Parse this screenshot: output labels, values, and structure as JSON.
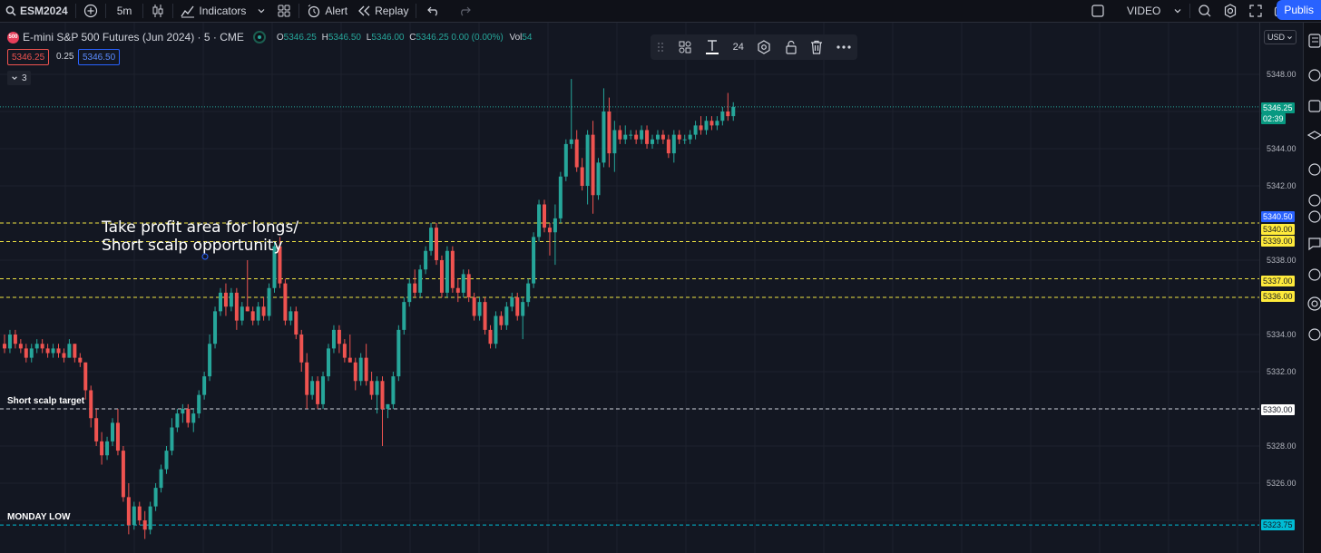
{
  "toolbar": {
    "symbol": "ESM2024",
    "interval": "5m",
    "indicators": "Indicators",
    "alert": "Alert",
    "replay": "Replay",
    "video": "VIDEO",
    "publish": "Publis"
  },
  "legend": {
    "title": "E-mini S&P 500 Futures (Jun 2024) · 5 · CME",
    "symbol_badge": "500",
    "o_label": "O",
    "o": "5346.25",
    "h_label": "H",
    "h": "5346.50",
    "l_label": "L",
    "l": "5346.00",
    "c_label": "C",
    "c": "5346.25 0.00 (0.00%)",
    "vol_label": "Vol",
    "vol": "54",
    "bid": "5346.25",
    "spread": "0.25",
    "ask": "5346.50",
    "collapse_count": "3"
  },
  "drawing_toolbar": {
    "font_size": "24"
  },
  "annotations": {
    "take_profit_line1": "Take profit area for longs/",
    "take_profit_line2": "Short scalp opportunity",
    "short_scalp_target": "Short scalp target",
    "monday_low": "MONDAY LOW"
  },
  "price_axis": {
    "currency": "USD",
    "labels": [
      "5348.00",
      "5344.00",
      "5342.00",
      "5338.00",
      "5334.00",
      "5332.00",
      "5328.00",
      "5326.00"
    ],
    "tags": [
      {
        "text": "5346.25",
        "bg": "#089981",
        "fg": "#ffffff"
      },
      {
        "text": "02:39",
        "bg": "#089981",
        "fg": "#ffffff"
      },
      {
        "text": "5340.50",
        "bg": "#2962ff",
        "fg": "#ffffff"
      },
      {
        "text": "5340.00",
        "bg": "#ffeb3b",
        "fg": "#131722"
      },
      {
        "text": "5339.00",
        "bg": "#ffeb3b",
        "fg": "#131722"
      },
      {
        "text": "5337.00",
        "bg": "#ffeb3b",
        "fg": "#131722"
      },
      {
        "text": "5336.00",
        "bg": "#ffeb3b",
        "fg": "#131722"
      },
      {
        "text": "5330.00",
        "bg": "#ffffff",
        "fg": "#131722"
      },
      {
        "text": "5323.75",
        "bg": "#00bcd4",
        "fg": "#131722"
      }
    ]
  },
  "colors": {
    "up": "#26a69a",
    "down": "#ef5350",
    "level_yellow": "#f0e442",
    "level_white": "#d1d4dc",
    "level_cyan": "#00bcd4"
  },
  "chart_data": {
    "type": "candlestick",
    "symbol": "ESM2024",
    "price_levels": [
      5340.0,
      5339.0,
      5337.0,
      5336.0,
      5330.0,
      5323.75
    ],
    "candles_ohlc": [
      [
        5333.5,
        5334.0,
        5333.0,
        5333.25
      ],
      [
        5333.25,
        5334.25,
        5333.0,
        5334.0
      ],
      [
        5334.0,
        5334.25,
        5333.25,
        5333.5
      ],
      [
        5333.5,
        5333.75,
        5333.0,
        5333.25
      ],
      [
        5333.25,
        5333.5,
        5332.5,
        5332.75
      ],
      [
        5332.75,
        5333.5,
        5332.5,
        5333.25
      ],
      [
        5333.25,
        5333.75,
        5333.0,
        5333.5
      ],
      [
        5333.5,
        5333.75,
        5333.0,
        5333.25
      ],
      [
        5333.25,
        5333.5,
        5332.75,
        5333.0
      ],
      [
        5333.0,
        5333.5,
        5332.75,
        5333.25
      ],
      [
        5333.25,
        5333.5,
        5332.75,
        5333.0
      ],
      [
        5333.0,
        5333.25,
        5332.5,
        5332.75
      ],
      [
        5332.75,
        5333.75,
        5332.75,
        5333.5
      ],
      [
        5333.5,
        5333.5,
        5332.5,
        5332.75
      ],
      [
        5332.75,
        5333.0,
        5332.25,
        5332.5
      ],
      [
        5332.5,
        5332.5,
        5330.5,
        5331.0
      ],
      [
        5331.0,
        5331.25,
        5329.0,
        5329.5
      ],
      [
        5329.5,
        5330.0,
        5328.0,
        5328.25
      ],
      [
        5328.25,
        5328.75,
        5327.0,
        5327.5
      ],
      [
        5327.5,
        5328.5,
        5327.25,
        5328.25
      ],
      [
        5328.25,
        5329.5,
        5328.0,
        5329.25
      ],
      [
        5329.25,
        5330.0,
        5327.5,
        5327.75
      ],
      [
        5327.75,
        5328.0,
        5325.0,
        5325.25
      ],
      [
        5325.25,
        5326.0,
        5323.25,
        5323.75
      ],
      [
        5323.75,
        5325.0,
        5323.5,
        5324.75
      ],
      [
        5324.75,
        5325.0,
        5323.75,
        5324.0
      ],
      [
        5324.0,
        5324.5,
        5323.0,
        5323.5
      ],
      [
        5323.5,
        5325.0,
        5323.25,
        5324.75
      ],
      [
        5324.75,
        5326.0,
        5324.5,
        5325.75
      ],
      [
        5325.75,
        5327.0,
        5325.5,
        5326.75
      ],
      [
        5326.75,
        5328.0,
        5326.5,
        5327.75
      ],
      [
        5327.75,
        5329.5,
        5327.5,
        5329.0
      ],
      [
        5329.0,
        5330.0,
        5328.75,
        5329.75
      ],
      [
        5329.75,
        5330.25,
        5329.25,
        5330.0
      ],
      [
        5330.0,
        5330.25,
        5329.0,
        5329.25
      ],
      [
        5329.25,
        5330.0,
        5328.75,
        5329.75
      ],
      [
        5329.75,
        5331.0,
        5329.5,
        5330.75
      ],
      [
        5330.75,
        5332.0,
        5330.5,
        5331.75
      ],
      [
        5331.75,
        5334.0,
        5331.5,
        5333.5
      ],
      [
        5333.5,
        5335.5,
        5333.25,
        5335.25
      ],
      [
        5335.25,
        5336.5,
        5335.0,
        5336.25
      ],
      [
        5336.25,
        5336.75,
        5335.0,
        5335.5
      ],
      [
        5335.5,
        5336.5,
        5335.25,
        5336.25
      ],
      [
        5336.25,
        5336.5,
        5334.25,
        5334.75
      ],
      [
        5334.75,
        5335.75,
        5334.5,
        5335.5
      ],
      [
        5335.5,
        5338.0,
        5335.25,
        5335.25
      ],
      [
        5335.25,
        5335.5,
        5334.5,
        5334.75
      ],
      [
        5334.75,
        5335.75,
        5334.5,
        5335.5
      ],
      [
        5335.5,
        5336.0,
        5334.75,
        5335.0
      ],
      [
        5335.0,
        5336.75,
        5334.75,
        5336.5
      ],
      [
        5336.5,
        5339.0,
        5336.25,
        5338.75
      ],
      [
        5338.75,
        5339.25,
        5336.5,
        5336.75
      ],
      [
        5336.75,
        5337.0,
        5334.5,
        5334.75
      ],
      [
        5334.75,
        5335.5,
        5334.5,
        5335.25
      ],
      [
        5335.25,
        5335.5,
        5333.75,
        5334.0
      ],
      [
        5334.0,
        5334.25,
        5332.0,
        5332.5
      ],
      [
        5332.5,
        5333.0,
        5330.0,
        5330.75
      ],
      [
        5330.75,
        5331.75,
        5330.5,
        5331.5
      ],
      [
        5331.5,
        5331.75,
        5330.0,
        5330.25
      ],
      [
        5330.25,
        5332.0,
        5330.0,
        5331.75
      ],
      [
        5331.75,
        5333.5,
        5331.5,
        5333.25
      ],
      [
        5333.25,
        5334.5,
        5333.0,
        5334.25
      ],
      [
        5334.25,
        5334.5,
        5333.0,
        5333.5
      ],
      [
        5333.5,
        5333.75,
        5332.5,
        5332.75
      ],
      [
        5332.75,
        5334.0,
        5332.5,
        5332.5
      ],
      [
        5332.5,
        5332.75,
        5331.0,
        5331.5
      ],
      [
        5331.5,
        5333.0,
        5331.25,
        5332.75
      ],
      [
        5332.75,
        5333.5,
        5331.25,
        5331.5
      ],
      [
        5331.5,
        5332.0,
        5330.5,
        5330.75
      ],
      [
        5330.75,
        5331.75,
        5329.75,
        5331.5
      ],
      [
        5331.5,
        5331.75,
        5328.0,
        5330.0
      ],
      [
        5330.0,
        5330.25,
        5329.5,
        5330.25
      ],
      [
        5330.25,
        5332.0,
        5330.0,
        5331.75
      ],
      [
        5331.75,
        5334.5,
        5331.5,
        5334.25
      ],
      [
        5334.25,
        5336.0,
        5334.0,
        5335.75
      ],
      [
        5335.75,
        5337.0,
        5335.5,
        5336.75
      ],
      [
        5336.75,
        5337.5,
        5336.0,
        5336.25
      ],
      [
        5336.25,
        5337.75,
        5336.0,
        5337.5
      ],
      [
        5337.5,
        5338.75,
        5337.25,
        5338.5
      ],
      [
        5338.5,
        5340.0,
        5338.25,
        5339.75
      ],
      [
        5339.75,
        5340.0,
        5337.75,
        5338.0
      ],
      [
        5338.0,
        5338.25,
        5336.0,
        5336.25
      ],
      [
        5336.25,
        5338.75,
        5336.0,
        5338.5
      ],
      [
        5338.5,
        5338.75,
        5336.25,
        5336.5
      ],
      [
        5336.5,
        5337.0,
        5335.75,
        5336.25
      ],
      [
        5336.25,
        5337.5,
        5336.0,
        5337.25
      ],
      [
        5337.25,
        5337.5,
        5335.75,
        5336.0
      ],
      [
        5336.0,
        5336.25,
        5334.75,
        5335.0
      ],
      [
        5335.0,
        5336.0,
        5334.75,
        5335.75
      ],
      [
        5335.75,
        5336.0,
        5334.0,
        5334.25
      ],
      [
        5334.25,
        5334.5,
        5333.25,
        5333.5
      ],
      [
        5333.5,
        5335.25,
        5333.25,
        5335.0
      ],
      [
        5335.0,
        5335.25,
        5334.25,
        5334.5
      ],
      [
        5334.5,
        5335.75,
        5334.25,
        5335.5
      ],
      [
        5335.5,
        5336.25,
        5335.25,
        5336.0
      ],
      [
        5336.0,
        5336.25,
        5334.75,
        5335.0
      ],
      [
        5335.0,
        5336.0,
        5333.75,
        5335.75
      ],
      [
        5335.75,
        5337.0,
        5335.5,
        5336.75
      ],
      [
        5336.75,
        5339.5,
        5336.5,
        5339.25
      ],
      [
        5339.25,
        5341.25,
        5339.0,
        5341.0
      ],
      [
        5341.0,
        5341.25,
        5339.5,
        5339.75
      ],
      [
        5339.75,
        5340.0,
        5338.25,
        5339.5
      ],
      [
        5339.5,
        5341.0,
        5337.75,
        5340.25
      ],
      [
        5340.25,
        5342.75,
        5340.0,
        5342.5
      ],
      [
        5342.5,
        5344.5,
        5342.25,
        5344.25
      ],
      [
        5344.25,
        5347.75,
        5344.0,
        5344.5
      ],
      [
        5344.5,
        5345.0,
        5342.75,
        5343.0
      ],
      [
        5343.0,
        5343.5,
        5341.75,
        5342.0
      ],
      [
        5342.0,
        5345.0,
        5341.0,
        5344.75
      ],
      [
        5344.75,
        5345.5,
        5340.5,
        5341.5
      ],
      [
        5341.5,
        5343.5,
        5341.25,
        5343.25
      ],
      [
        5343.25,
        5347.25,
        5343.0,
        5346.0
      ],
      [
        5346.0,
        5346.75,
        5343.0,
        5343.75
      ],
      [
        5343.75,
        5345.5,
        5342.75,
        5345.0
      ],
      [
        5345.0,
        5345.25,
        5344.25,
        5344.5
      ],
      [
        5344.5,
        5345.25,
        5344.25,
        5344.75
      ],
      [
        5344.75,
        5345.0,
        5344.5,
        5344.75
      ],
      [
        5344.75,
        5345.0,
        5344.25,
        5344.5
      ],
      [
        5344.5,
        5345.25,
        5344.25,
        5345.0
      ],
      [
        5345.0,
        5345.25,
        5344.0,
        5344.25
      ],
      [
        5344.25,
        5344.75,
        5344.0,
        5344.5
      ],
      [
        5344.5,
        5345.0,
        5344.25,
        5344.75
      ],
      [
        5344.75,
        5345.0,
        5344.25,
        5344.5
      ],
      [
        5344.5,
        5344.75,
        5343.5,
        5343.75
      ],
      [
        5343.75,
        5345.0,
        5343.25,
        5344.75
      ],
      [
        5344.75,
        5345.0,
        5344.25,
        5344.5
      ],
      [
        5344.5,
        5344.75,
        5344.25,
        5344.5
      ],
      [
        5344.5,
        5345.0,
        5344.25,
        5344.75
      ],
      [
        5344.75,
        5345.5,
        5344.5,
        5345.25
      ],
      [
        5345.25,
        5345.75,
        5344.75,
        5345.0
      ],
      [
        5345.0,
        5345.75,
        5344.75,
        5345.5
      ],
      [
        5345.5,
        5345.75,
        5345.0,
        5345.25
      ],
      [
        5345.25,
        5345.75,
        5345.0,
        5345.5
      ],
      [
        5345.5,
        5346.25,
        5345.25,
        5346.0
      ],
      [
        5346.0,
        5347.0,
        5345.5,
        5345.75
      ],
      [
        5345.75,
        5346.5,
        5345.5,
        5346.25
      ]
    ]
  }
}
